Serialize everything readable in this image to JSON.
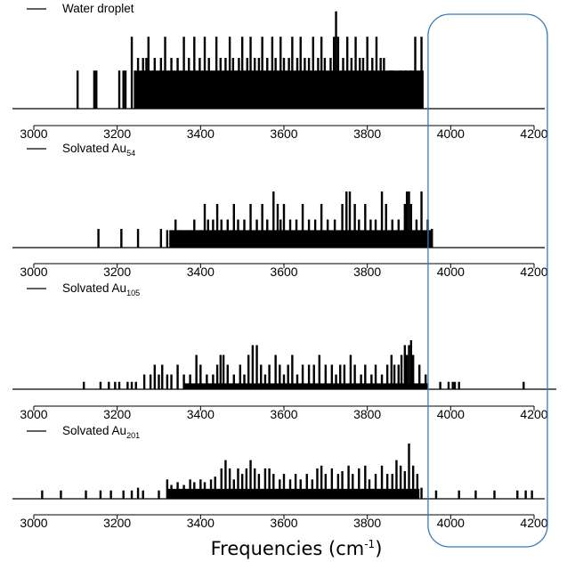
{
  "xlabel": {
    "pre": "Frequencies (cm",
    "sup": "-1",
    "post": ")"
  },
  "highlight_box": {
    "from": 3950,
    "to": 4200,
    "color": "#3a7bb8"
  },
  "chart_data": [
    {
      "type": "bar",
      "legend": {
        "text": "Water droplet",
        "sub": ""
      },
      "xlim": [
        3000,
        4200
      ],
      "xticks": [
        "3000",
        "3200",
        "3400",
        "3600",
        "3800",
        "4000",
        "4200"
      ],
      "dense": [
        [
          3240,
          3935,
          0.45
        ]
      ],
      "lines": [
        [
          3105,
          0.45
        ],
        [
          3145,
          0.45
        ],
        [
          3150,
          0.45
        ],
        [
          3205,
          0.45
        ],
        [
          3215,
          0.45
        ],
        [
          3220,
          0.45
        ],
        [
          3235,
          0.85
        ],
        [
          3250,
          0.6
        ],
        [
          3262,
          0.6
        ],
        [
          3270,
          0.6
        ],
        [
          3275,
          0.85
        ],
        [
          3290,
          0.6
        ],
        [
          3305,
          0.6
        ],
        [
          3315,
          0.85
        ],
        [
          3330,
          0.6
        ],
        [
          3345,
          0.6
        ],
        [
          3360,
          0.85
        ],
        [
          3372,
          0.6
        ],
        [
          3385,
          0.85
        ],
        [
          3398,
          0.6
        ],
        [
          3410,
          0.85
        ],
        [
          3420,
          0.6
        ],
        [
          3438,
          0.85
        ],
        [
          3448,
          0.6
        ],
        [
          3460,
          0.6
        ],
        [
          3470,
          0.85
        ],
        [
          3478,
          0.6
        ],
        [
          3492,
          0.6
        ],
        [
          3500,
          0.85
        ],
        [
          3512,
          0.6
        ],
        [
          3520,
          0.85
        ],
        [
          3530,
          0.6
        ],
        [
          3540,
          0.6
        ],
        [
          3548,
          0.85
        ],
        [
          3560,
          0.6
        ],
        [
          3572,
          0.85
        ],
        [
          3580,
          0.6
        ],
        [
          3592,
          0.85
        ],
        [
          3600,
          0.6
        ],
        [
          3612,
          0.6
        ],
        [
          3620,
          0.85
        ],
        [
          3632,
          0.6
        ],
        [
          3640,
          0.85
        ],
        [
          3650,
          0.6
        ],
        [
          3660,
          0.6
        ],
        [
          3670,
          0.85
        ],
        [
          3682,
          0.6
        ],
        [
          3690,
          0.85
        ],
        [
          3698,
          0.6
        ],
        [
          3712,
          0.6
        ],
        [
          3720,
          0.85
        ],
        [
          3725,
          1.15
        ],
        [
          3730,
          0.85
        ],
        [
          3742,
          0.6
        ],
        [
          3752,
          0.85
        ],
        [
          3762,
          0.6
        ],
        [
          3772,
          0.85
        ],
        [
          3782,
          0.6
        ],
        [
          3790,
          0.6
        ],
        [
          3800,
          0.85
        ],
        [
          3812,
          0.6
        ],
        [
          3822,
          0.85
        ],
        [
          3832,
          0.6
        ],
        [
          3840,
          0.6
        ],
        [
          3855,
          0.45
        ],
        [
          3860,
          0.45
        ],
        [
          3880,
          0.45
        ],
        [
          3892,
          0.45
        ],
        [
          3905,
          0.45
        ],
        [
          3915,
          0.85
        ],
        [
          3930,
          0.85
        ]
      ]
    },
    {
      "type": "bar",
      "legend": {
        "text": "Solvated Au",
        "sub": "54"
      },
      "xlim": [
        3000,
        4200
      ],
      "xticks": [
        "3000",
        "3200",
        "3400",
        "3600",
        "3800",
        "4000",
        "4200"
      ],
      "dense": [
        [
          3325,
          3955,
          0.28
        ]
      ],
      "lines": [
        [
          3155,
          0.3
        ],
        [
          3210,
          0.3
        ],
        [
          3250,
          0.3
        ],
        [
          3305,
          0.3
        ],
        [
          3320,
          0.28
        ],
        [
          3340,
          0.45
        ],
        [
          3350,
          0.28
        ],
        [
          3370,
          0.28
        ],
        [
          3385,
          0.45
        ],
        [
          3400,
          0.28
        ],
        [
          3410,
          0.7
        ],
        [
          3418,
          0.45
        ],
        [
          3430,
          0.45
        ],
        [
          3440,
          0.7
        ],
        [
          3450,
          0.45
        ],
        [
          3465,
          0.45
        ],
        [
          3480,
          0.7
        ],
        [
          3490,
          0.45
        ],
        [
          3505,
          0.45
        ],
        [
          3520,
          0.7
        ],
        [
          3535,
          0.45
        ],
        [
          3548,
          0.7
        ],
        [
          3560,
          0.45
        ],
        [
          3575,
          0.9
        ],
        [
          3585,
          0.7
        ],
        [
          3592,
          0.45
        ],
        [
          3600,
          0.7
        ],
        [
          3615,
          0.45
        ],
        [
          3630,
          0.45
        ],
        [
          3645,
          0.7
        ],
        [
          3660,
          0.45
        ],
        [
          3675,
          0.45
        ],
        [
          3690,
          0.7
        ],
        [
          3705,
          0.45
        ],
        [
          3722,
          0.45
        ],
        [
          3740,
          0.7
        ],
        [
          3750,
          0.9
        ],
        [
          3758,
          0.9
        ],
        [
          3770,
          0.7
        ],
        [
          3780,
          0.45
        ],
        [
          3795,
          0.7
        ],
        [
          3808,
          0.45
        ],
        [
          3820,
          0.45
        ],
        [
          3835,
          0.9
        ],
        [
          3845,
          0.7
        ],
        [
          3860,
          0.45
        ],
        [
          3875,
          0.45
        ],
        [
          3890,
          0.7
        ],
        [
          3895,
          0.9
        ],
        [
          3900,
          0.9
        ],
        [
          3905,
          0.7
        ],
        [
          3918,
          0.45
        ],
        [
          3930,
          0.9
        ],
        [
          3945,
          0.45
        ],
        [
          3955,
          0.3
        ]
      ]
    },
    {
      "type": "bar",
      "legend": {
        "text": "Solvated Au",
        "sub": "105"
      },
      "xlim": [
        3000,
        4200
      ],
      "xticks": [
        "3000",
        "3200",
        "3400",
        "3600",
        "3800",
        "4000",
        "4200"
      ],
      "dense": [
        [
          3360,
          3945,
          0.12
        ]
      ],
      "lines": [
        [
          3120,
          0.15
        ],
        [
          3160,
          0.15
        ],
        [
          3180,
          0.15
        ],
        [
          3195,
          0.15
        ],
        [
          3205,
          0.15
        ],
        [
          3225,
          0.15
        ],
        [
          3235,
          0.15
        ],
        [
          3245,
          0.15
        ],
        [
          3265,
          0.3
        ],
        [
          3280,
          0.3
        ],
        [
          3290,
          0.5
        ],
        [
          3300,
          0.3
        ],
        [
          3308,
          0.5
        ],
        [
          3320,
          0.3
        ],
        [
          3330,
          0.3
        ],
        [
          3345,
          0.5
        ],
        [
          3360,
          0.3
        ],
        [
          3375,
          0.3
        ],
        [
          3390,
          0.7
        ],
        [
          3400,
          0.5
        ],
        [
          3415,
          0.3
        ],
        [
          3430,
          0.3
        ],
        [
          3440,
          0.5
        ],
        [
          3448,
          0.7
        ],
        [
          3455,
          0.7
        ],
        [
          3465,
          0.5
        ],
        [
          3480,
          0.3
        ],
        [
          3495,
          0.5
        ],
        [
          3505,
          0.3
        ],
        [
          3515,
          0.7
        ],
        [
          3525,
          0.9
        ],
        [
          3535,
          0.9
        ],
        [
          3545,
          0.5
        ],
        [
          3555,
          0.3
        ],
        [
          3565,
          0.5
        ],
        [
          3580,
          0.7
        ],
        [
          3590,
          0.5
        ],
        [
          3600,
          0.3
        ],
        [
          3610,
          0.5
        ],
        [
          3620,
          0.7
        ],
        [
          3632,
          0.3
        ],
        [
          3645,
          0.5
        ],
        [
          3660,
          0.5
        ],
        [
          3672,
          0.5
        ],
        [
          3685,
          0.7
        ],
        [
          3700,
          0.5
        ],
        [
          3715,
          0.5
        ],
        [
          3725,
          0.3
        ],
        [
          3735,
          0.5
        ],
        [
          3745,
          0.5
        ],
        [
          3760,
          0.7
        ],
        [
          3770,
          0.5
        ],
        [
          3785,
          0.3
        ],
        [
          3795,
          0.5
        ],
        [
          3810,
          0.3
        ],
        [
          3820,
          0.5
        ],
        [
          3835,
          0.3
        ],
        [
          3848,
          0.5
        ],
        [
          3858,
          0.7
        ],
        [
          3865,
          0.5
        ],
        [
          3875,
          0.5
        ],
        [
          3882,
          0.7
        ],
        [
          3890,
          0.9
        ],
        [
          3895,
          0.7
        ],
        [
          3900,
          0.9
        ],
        [
          3905,
          1.0
        ],
        [
          3910,
          0.7
        ],
        [
          3925,
          0.5
        ],
        [
          3940,
          0.3
        ],
        [
          3975,
          0.15
        ],
        [
          3995,
          0.15
        ],
        [
          4005,
          0.15
        ],
        [
          4010,
          0.15
        ],
        [
          4020,
          0.15
        ],
        [
          4175,
          0.15
        ]
      ]
    },
    {
      "type": "bar",
      "legend": {
        "text": "Solvated Au",
        "sub": "201"
      },
      "xlim": [
        3000,
        4200
      ],
      "xticks": [
        "3000",
        "3200",
        "3400",
        "3600",
        "3800",
        "4000",
        "4200"
      ],
      "dense": [
        [
          3320,
          3925,
          0.18
        ]
      ],
      "lines": [
        [
          3020,
          0.15
        ],
        [
          3065,
          0.15
        ],
        [
          3125,
          0.15
        ],
        [
          3160,
          0.15
        ],
        [
          3185,
          0.15
        ],
        [
          3215,
          0.15
        ],
        [
          3235,
          0.15
        ],
        [
          3250,
          0.2
        ],
        [
          3262,
          0.15
        ],
        [
          3300,
          0.15
        ],
        [
          3320,
          0.35
        ],
        [
          3330,
          0.25
        ],
        [
          3345,
          0.3
        ],
        [
          3360,
          0.25
        ],
        [
          3375,
          0.35
        ],
        [
          3385,
          0.3
        ],
        [
          3400,
          0.35
        ],
        [
          3410,
          0.3
        ],
        [
          3425,
          0.35
        ],
        [
          3435,
          0.4
        ],
        [
          3450,
          0.55
        ],
        [
          3460,
          0.7
        ],
        [
          3470,
          0.55
        ],
        [
          3480,
          0.35
        ],
        [
          3490,
          0.55
        ],
        [
          3500,
          0.45
        ],
        [
          3510,
          0.55
        ],
        [
          3520,
          0.7
        ],
        [
          3530,
          0.55
        ],
        [
          3540,
          0.45
        ],
        [
          3555,
          0.55
        ],
        [
          3565,
          0.55
        ],
        [
          3575,
          0.45
        ],
        [
          3590,
          0.35
        ],
        [
          3600,
          0.45
        ],
        [
          3615,
          0.35
        ],
        [
          3628,
          0.45
        ],
        [
          3640,
          0.35
        ],
        [
          3655,
          0.45
        ],
        [
          3668,
          0.35
        ],
        [
          3680,
          0.55
        ],
        [
          3690,
          0.6
        ],
        [
          3700,
          0.45
        ],
        [
          3715,
          0.55
        ],
        [
          3730,
          0.45
        ],
        [
          3740,
          0.5
        ],
        [
          3755,
          0.6
        ],
        [
          3765,
          0.45
        ],
        [
          3780,
          0.55
        ],
        [
          3795,
          0.6
        ],
        [
          3805,
          0.35
        ],
        [
          3820,
          0.45
        ],
        [
          3835,
          0.6
        ],
        [
          3848,
          0.45
        ],
        [
          3860,
          0.45
        ],
        [
          3870,
          0.7
        ],
        [
          3880,
          0.6
        ],
        [
          3890,
          0.5
        ],
        [
          3900,
          1.0
        ],
        [
          3910,
          0.6
        ],
        [
          3920,
          0.45
        ],
        [
          3930,
          0.2
        ],
        [
          3965,
          0.15
        ],
        [
          4020,
          0.15
        ],
        [
          4060,
          0.15
        ],
        [
          4105,
          0.15
        ],
        [
          4160,
          0.15
        ],
        [
          4180,
          0.15
        ],
        [
          4195,
          0.15
        ]
      ]
    }
  ]
}
